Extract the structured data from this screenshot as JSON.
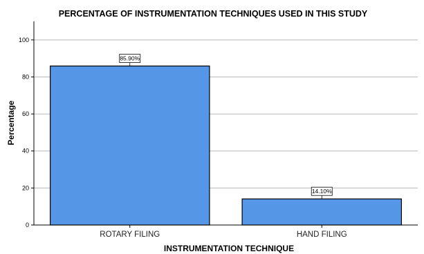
{
  "chart_data": {
    "type": "bar",
    "title": "PERCENTAGE OF INSTRUMENTATION TECHNIQUES USED IN THIS STUDY",
    "xlabel": "INSTRUMENTATION TECHNIQUE",
    "ylabel": "Percentage",
    "categories": [
      "ROTARY FILING",
      "HAND FILING"
    ],
    "values": [
      85.9,
      14.1
    ],
    "data_labels": [
      "85.90%",
      "14.10%"
    ],
    "ylim": [
      0,
      110
    ],
    "yticks": [
      0,
      20,
      40,
      60,
      80,
      100
    ],
    "grid": true,
    "bar_color": "#5596e6",
    "bar_edge_color": "#000000"
  }
}
